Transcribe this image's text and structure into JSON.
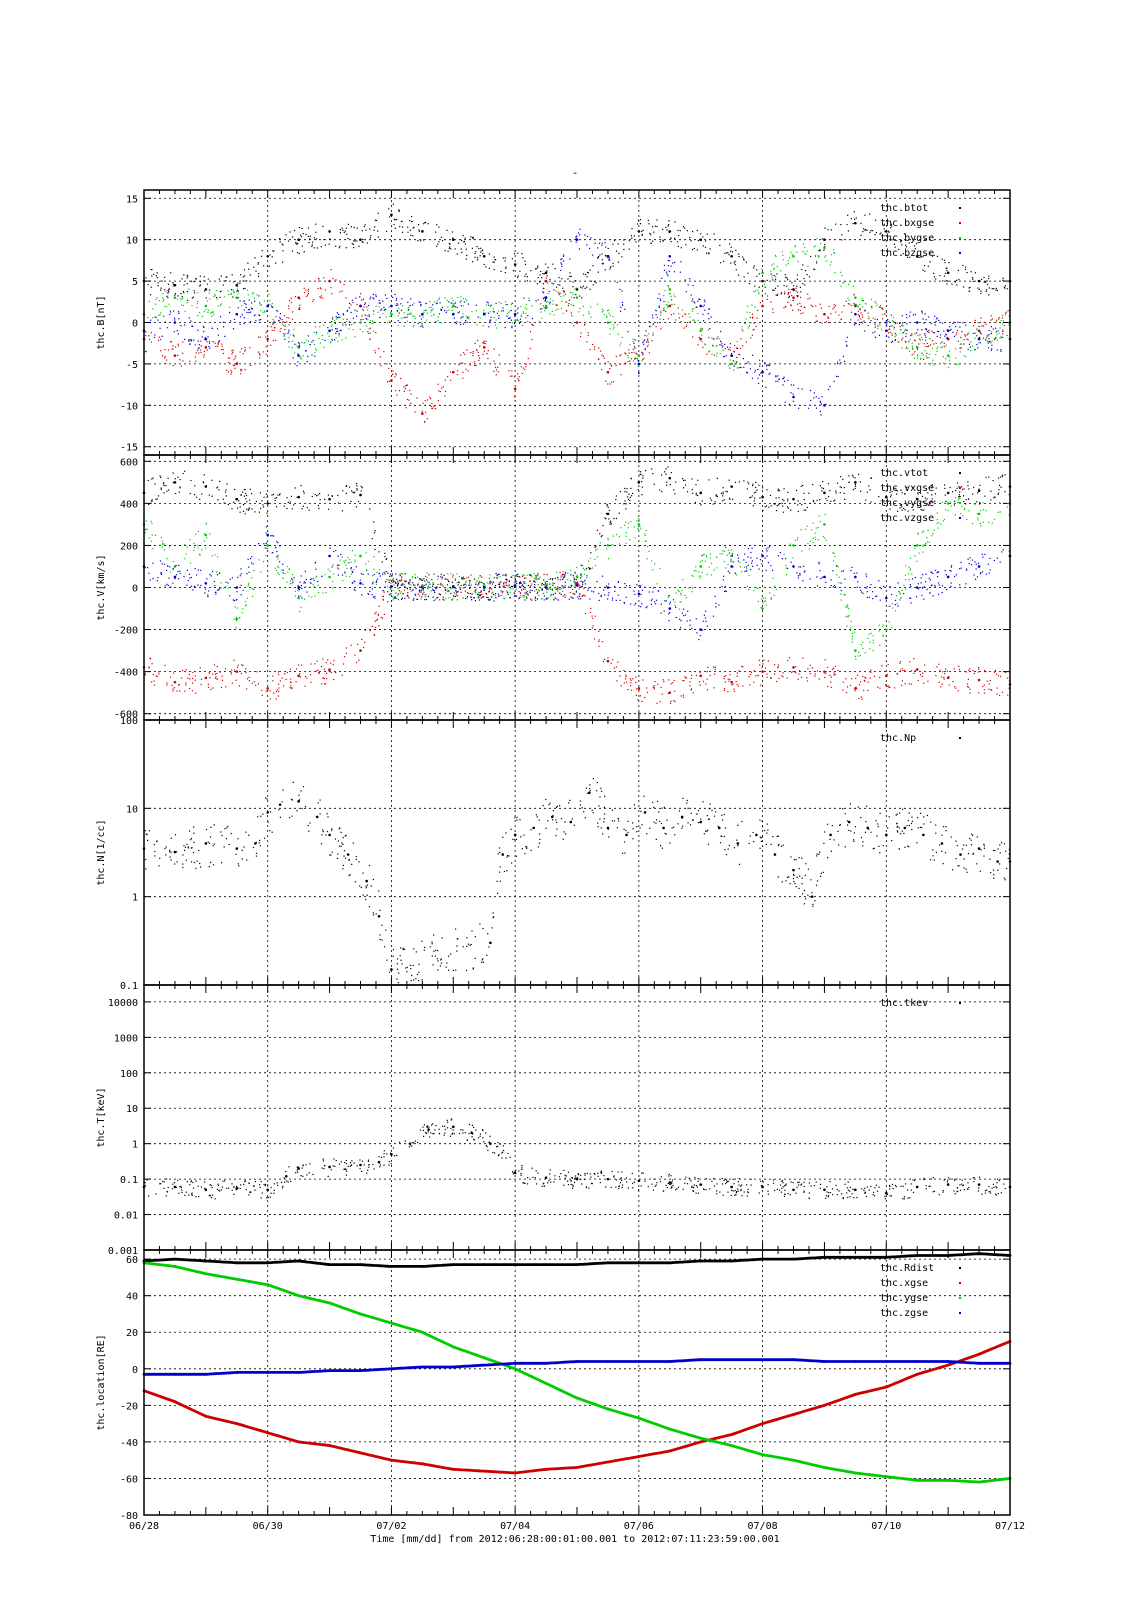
{
  "figure": {
    "top_mark": "-",
    "footer": "Time [mm/dd]  from 2012:06:28:00:01:00.001  to  2012:07:11:23:59:00.001",
    "x_ticks": [
      "06/28",
      "06/30",
      "07/02",
      "07/04",
      "07/06",
      "07/08",
      "07/10",
      "07/12"
    ],
    "x_range_days": [
      0,
      14
    ]
  },
  "colors": {
    "black": "#000000",
    "red": "#cc0000",
    "green": "#00cc00",
    "blue": "#0000cc"
  },
  "chart_data": [
    {
      "type": "scatter",
      "ylabel": "thc.B[nT]",
      "ylim": [
        -16,
        16
      ],
      "y_ticks": [
        15,
        10,
        5,
        0,
        -5,
        -10,
        -15
      ],
      "scale": "linear",
      "series": [
        {
          "name": "thc.btot",
          "color": "black",
          "x": [
            0,
            0.5,
            1,
            1.5,
            2,
            2.5,
            3,
            3.5,
            4,
            4.5,
            5,
            5.5,
            6,
            6.5,
            7,
            7.5,
            8,
            8.5,
            9,
            9.5,
            10,
            10.5,
            11,
            11.5,
            12,
            12.5,
            13,
            13.5,
            14
          ],
          "y": [
            5,
            4.5,
            4,
            4.5,
            8,
            10,
            11,
            10,
            13,
            11,
            10,
            8,
            7,
            6,
            4,
            8,
            11,
            11,
            10,
            8,
            5,
            4,
            10,
            12,
            11,
            8,
            6,
            5,
            5
          ]
        },
        {
          "name": "thc.bxgse",
          "color": "red",
          "x": [
            0,
            0.5,
            1,
            1.5,
            2,
            2.5,
            3,
            3.5,
            4,
            4.5,
            5,
            5.5,
            6,
            6.5,
            7,
            7.5,
            8,
            8.5,
            9,
            9.5,
            10,
            10.5,
            11,
            11.5,
            12,
            12.5,
            13,
            13.5,
            14
          ],
          "y": [
            -2,
            -4,
            -3,
            -5,
            -2,
            3,
            5,
            2,
            -7,
            -11,
            -6,
            -3,
            -8,
            5,
            0,
            -6,
            -4,
            2,
            -2,
            -4,
            2,
            3,
            1,
            2,
            0,
            -3,
            -2,
            -1,
            0
          ]
        },
        {
          "name": "thc.bygse",
          "color": "green",
          "x": [
            0,
            0.5,
            1,
            1.5,
            2,
            2.5,
            3,
            3.5,
            4,
            4.5,
            5,
            5.5,
            6,
            6.5,
            7,
            7.5,
            8,
            8.5,
            9,
            9.5,
            10,
            10.5,
            11,
            11.5,
            12,
            12.5,
            13,
            13.5,
            14
          ],
          "y": [
            1,
            3,
            2,
            3,
            2,
            -3,
            -1,
            0,
            1,
            1,
            2,
            1,
            1,
            2,
            3,
            0,
            -4,
            4,
            -1,
            -5,
            6,
            8,
            9,
            3,
            0,
            -3,
            -4,
            -2,
            0
          ]
        },
        {
          "name": "thc.bzgse",
          "color": "blue",
          "x": [
            0,
            0.5,
            1,
            1.5,
            2,
            2.5,
            3,
            3.5,
            4,
            4.5,
            5,
            5.5,
            6,
            6.5,
            7,
            7.5,
            8,
            8.5,
            9,
            9.5,
            10,
            10.5,
            11,
            11.5,
            12,
            12.5,
            13,
            13.5,
            14
          ],
          "y": [
            -1,
            0,
            -2,
            1,
            2,
            -4,
            -1,
            2,
            2,
            1,
            1,
            1,
            1,
            3,
            10,
            8,
            -5,
            8,
            2,
            -4,
            -6,
            -9,
            -10,
            1,
            -1,
            0,
            -1,
            -2,
            -2
          ]
        }
      ]
    },
    {
      "type": "scatter",
      "ylabel": "thc.V[km/s]",
      "ylim": [
        -630,
        630
      ],
      "y_ticks": [
        600,
        400,
        200,
        0,
        -200,
        -400,
        -600
      ],
      "scale": "linear",
      "series": [
        {
          "name": "thc.vtot",
          "color": "black",
          "x": [
            0,
            0.5,
            1,
            1.5,
            2,
            2.5,
            3,
            3.5,
            4,
            4.5,
            5,
            5.5,
            6,
            6.5,
            7,
            7.5,
            8,
            8.5,
            9,
            9.5,
            10,
            10.5,
            11,
            11.5,
            12,
            12.5,
            13,
            13.5,
            14
          ],
          "y": [
            450,
            500,
            480,
            420,
            400,
            430,
            420,
            440,
            5,
            5,
            5,
            5,
            10,
            10,
            15,
            350,
            500,
            520,
            450,
            480,
            430,
            420,
            450,
            500,
            430,
            420,
            450,
            460,
            480
          ]
        },
        {
          "name": "thc.vxgse",
          "color": "red",
          "x": [
            0,
            0.5,
            1,
            1.5,
            2,
            2.5,
            3,
            3.5,
            4,
            4.5,
            5,
            5.5,
            6,
            6.5,
            7,
            7.5,
            8,
            8.5,
            9,
            9.5,
            10,
            10.5,
            11,
            11.5,
            12,
            12.5,
            13,
            13.5,
            14
          ],
          "y": [
            -380,
            -450,
            -430,
            -400,
            -480,
            -420,
            -390,
            -300,
            5,
            5,
            5,
            5,
            5,
            5,
            20,
            -350,
            -480,
            -500,
            -420,
            -450,
            -400,
            -380,
            -400,
            -480,
            -420,
            -390,
            -430,
            -440,
            -460
          ]
        },
        {
          "name": "thc.vygse",
          "color": "green",
          "x": [
            0,
            0.5,
            1,
            1.5,
            2,
            2.5,
            3,
            3.5,
            4,
            4.5,
            5,
            5.5,
            6,
            6.5,
            7,
            7.5,
            8,
            8.5,
            9,
            9.5,
            10,
            10.5,
            11,
            11.5,
            12,
            12.5,
            13,
            13.5,
            14
          ],
          "y": [
            300,
            100,
            250,
            -150,
            200,
            -50,
            50,
            150,
            5,
            10,
            5,
            10,
            5,
            10,
            50,
            200,
            300,
            -100,
            100,
            150,
            -100,
            200,
            300,
            -300,
            -200,
            200,
            400,
            350,
            400
          ]
        },
        {
          "name": "thc.vzgse",
          "color": "blue",
          "x": [
            0,
            0.5,
            1,
            1.5,
            2,
            2.5,
            3,
            3.5,
            4,
            4.5,
            5,
            5.5,
            6,
            6.5,
            7,
            7.5,
            8,
            8.5,
            9,
            9.5,
            10,
            10.5,
            11,
            11.5,
            12,
            12.5,
            13,
            13.5,
            14
          ],
          "y": [
            100,
            50,
            20,
            0,
            250,
            0,
            150,
            20,
            5,
            0,
            5,
            0,
            5,
            0,
            10,
            0,
            -30,
            -100,
            -200,
            100,
            150,
            100,
            50,
            50,
            -50,
            0,
            50,
            100,
            150
          ]
        }
      ]
    },
    {
      "type": "scatter",
      "ylabel": "thc.N[1/cc]",
      "ylim": [
        0.1,
        100
      ],
      "y_ticks": [
        100,
        10,
        1,
        0.1
      ],
      "scale": "log",
      "series": [
        {
          "name": "thc.Np",
          "color": "black",
          "x": [
            0,
            0.5,
            1,
            1.5,
            1.8,
            2,
            2.2,
            2.5,
            2.8,
            3,
            3.3,
            3.6,
            3.8,
            4,
            5.6,
            5.8,
            6,
            6.3,
            6.6,
            6.9,
            7.2,
            7.5,
            7.8,
            8.1,
            8.4,
            8.7,
            9,
            9.3,
            9.6,
            9.9,
            10.2,
            10.5,
            10.8,
            11.1,
            11.4,
            11.7,
            12,
            12.3,
            12.6,
            12.9,
            13.2,
            13.5,
            13.8,
            14
          ],
          "y": [
            3.5,
            3.2,
            4,
            3.5,
            4,
            9,
            11,
            12,
            8,
            5,
            3,
            1.5,
            0.6,
            0.15,
            0.3,
            3,
            5,
            6,
            8,
            7,
            15,
            6,
            5,
            9,
            6,
            8,
            7,
            6,
            4,
            5,
            3,
            2,
            1,
            5,
            7,
            6,
            5,
            6,
            5,
            4,
            3,
            3.5,
            2.5,
            2.5
          ]
        }
      ]
    },
    {
      "type": "scatter",
      "ylabel": "thc.T[keV]",
      "ylim": [
        0.001,
        30000
      ],
      "y_ticks": [
        10000,
        1000,
        100,
        10,
        1,
        0.1,
        0.01,
        0.001
      ],
      "scale": "log",
      "series": [
        {
          "name": "thc.tkev",
          "color": "black",
          "x": [
            0,
            0.5,
            1,
            1.5,
            2,
            2.3,
            2.5,
            3,
            3.5,
            3.8,
            4,
            4.3,
            4.6,
            5,
            5.3,
            5.6,
            6,
            6.5,
            7,
            7.5,
            8,
            8.5,
            9,
            9.5,
            10,
            10.5,
            11,
            11.5,
            12,
            12.5,
            13,
            13.5,
            14
          ],
          "y": [
            0.06,
            0.06,
            0.05,
            0.055,
            0.05,
            0.12,
            0.2,
            0.22,
            0.25,
            0.3,
            0.5,
            1,
            2.5,
            3,
            2,
            1,
            0.15,
            0.11,
            0.1,
            0.1,
            0.09,
            0.08,
            0.07,
            0.06,
            0.06,
            0.05,
            0.05,
            0.05,
            0.04,
            0.06,
            0.07,
            0.07,
            0.06
          ]
        }
      ]
    },
    {
      "type": "line",
      "ylabel": "thc.location[RE]",
      "ylim": [
        -80,
        65
      ],
      "y_ticks": [
        60,
        40,
        20,
        0,
        -20,
        -40,
        -60,
        -80
      ],
      "scale": "linear",
      "series": [
        {
          "name": "thc.Rdist",
          "color": "black",
          "x": [
            0,
            0.5,
            1,
            1.5,
            2,
            2.5,
            3,
            3.5,
            4,
            4.5,
            5,
            5.5,
            6,
            6.5,
            7,
            7.5,
            8,
            8.5,
            9,
            9.5,
            10,
            10.5,
            11,
            11.5,
            12,
            12.5,
            13,
            13.5,
            14
          ],
          "y": [
            59,
            60,
            59,
            58,
            58,
            59,
            57,
            57,
            56,
            56,
            57,
            57,
            57,
            57,
            57,
            58,
            58,
            58,
            59,
            59,
            60,
            60,
            61,
            61,
            61,
            62,
            62,
            63,
            62
          ]
        },
        {
          "name": "thc.xgse",
          "color": "red",
          "x": [
            0,
            0.5,
            1,
            1.5,
            2,
            2.5,
            3,
            3.5,
            4,
            4.5,
            5,
            5.5,
            6,
            6.5,
            7,
            7.5,
            8,
            8.5,
            9,
            9.5,
            10,
            10.5,
            11,
            11.5,
            12,
            12.5,
            13,
            13.5,
            14
          ],
          "y": [
            -12,
            -18,
            -26,
            -30,
            -35,
            -40,
            -42,
            -46,
            -50,
            -52,
            -55,
            -56,
            -57,
            -55,
            -54,
            -51,
            -48,
            -45,
            -40,
            -36,
            -30,
            -25,
            -20,
            -14,
            -10,
            -3,
            2,
            8,
            15
          ]
        },
        {
          "name": "thc.ygse",
          "color": "green",
          "x": [
            0,
            0.5,
            1,
            1.5,
            2,
            2.5,
            3,
            3.5,
            4,
            4.5,
            5,
            5.5,
            6,
            6.5,
            7,
            7.5,
            8,
            8.5,
            9,
            9.5,
            10,
            10.5,
            11,
            11.5,
            12,
            12.5,
            13,
            13.5,
            14
          ],
          "y": [
            58,
            56,
            52,
            49,
            46,
            40,
            36,
            30,
            25,
            20,
            12,
            6,
            0,
            -8,
            -16,
            -22,
            -27,
            -33,
            -38,
            -42,
            -47,
            -50,
            -54,
            -57,
            -59,
            -61,
            -61,
            -62,
            -60
          ]
        },
        {
          "name": "thc.zgse",
          "color": "blue",
          "x": [
            0,
            0.5,
            1,
            1.5,
            2,
            2.5,
            3,
            3.5,
            4,
            4.5,
            5,
            5.5,
            6,
            6.5,
            7,
            7.5,
            8,
            8.5,
            9,
            9.5,
            10,
            10.5,
            11,
            11.5,
            12,
            12.5,
            13,
            13.5,
            14
          ],
          "y": [
            -3,
            -3,
            -3,
            -2,
            -2,
            -2,
            -1,
            -1,
            0,
            1,
            1,
            2,
            3,
            3,
            4,
            4,
            4,
            4,
            5,
            5,
            5,
            5,
            4,
            4,
            4,
            4,
            4,
            3,
            3
          ]
        }
      ]
    }
  ]
}
